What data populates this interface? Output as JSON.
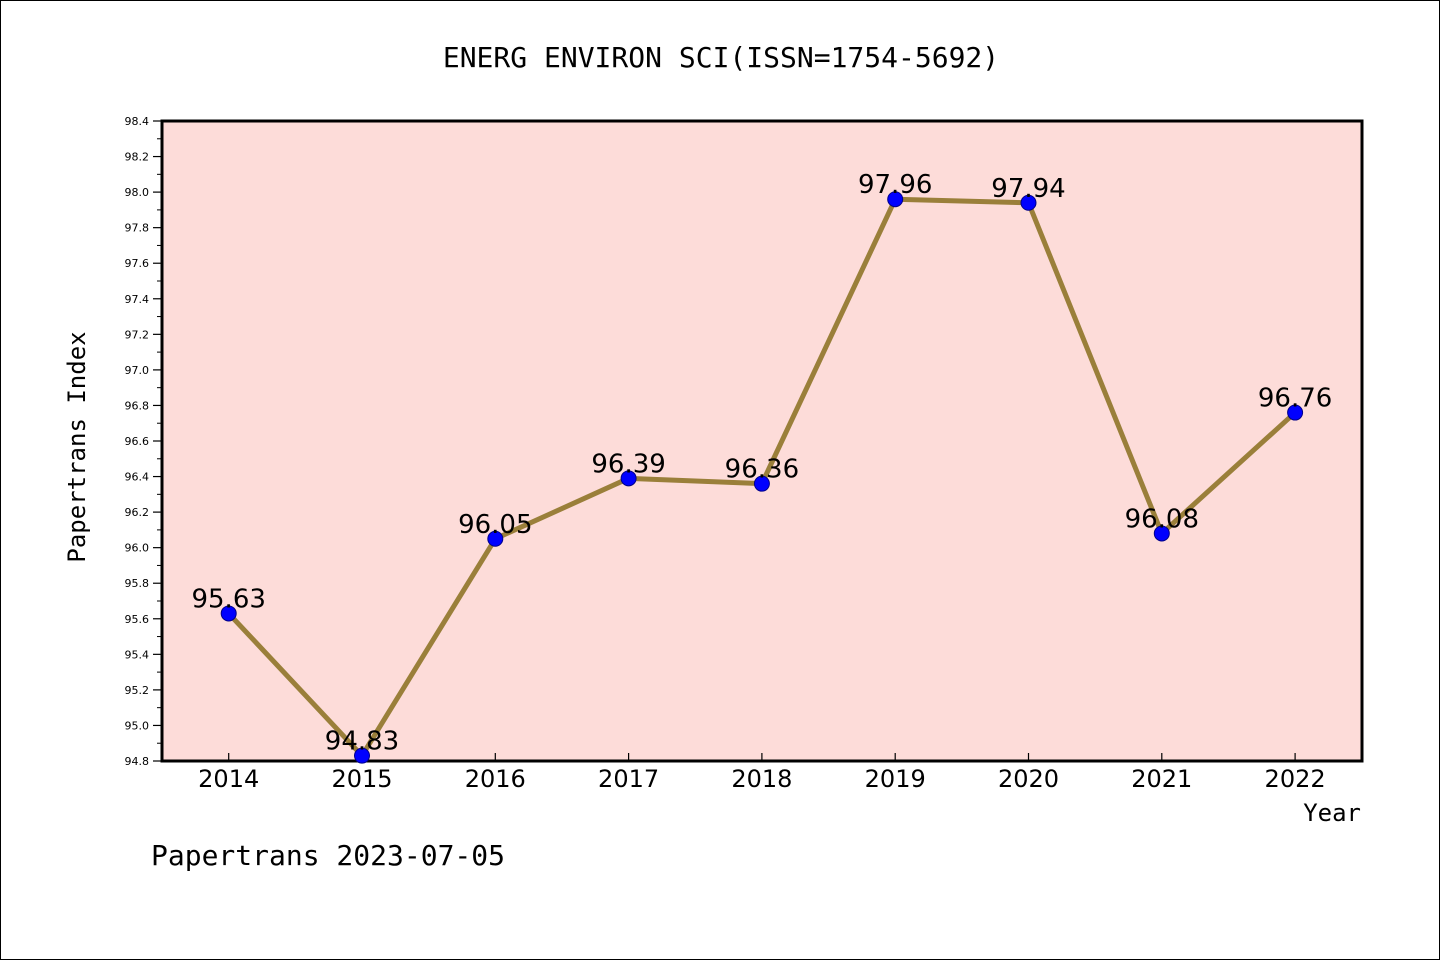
{
  "chart_data": {
    "type": "line",
    "title": "ENERG ENVIRON SCI(ISSN=1754-5692)",
    "xlabel": "Year",
    "ylabel": "Papertrans Index",
    "categories": [
      "2014",
      "2015",
      "2016",
      "2017",
      "2018",
      "2019",
      "2020",
      "2021",
      "2022"
    ],
    "values": [
      95.63,
      94.83,
      96.05,
      96.39,
      96.36,
      97.96,
      97.94,
      96.08,
      96.76
    ],
    "data_labels": [
      "95.63",
      "94.83",
      "96.05",
      "96.39",
      "96.36",
      "97.96",
      "97.94",
      "96.08",
      "96.76"
    ],
    "ylim": [
      94.8,
      98.4
    ],
    "yticks": [
      "94.8",
      "95.0",
      "95.2",
      "95.4",
      "95.6",
      "95.8",
      "96.0",
      "96.2",
      "96.4",
      "96.6",
      "96.8",
      "97.0",
      "97.2",
      "97.4",
      "97.6",
      "97.8",
      "98.0",
      "98.2",
      "98.4"
    ],
    "grid": false,
    "colors": {
      "plot_background": "#fddcd9",
      "line": "#9a7f3a",
      "marker": "#0000ff"
    }
  },
  "footer": "Papertrans 2023-07-05"
}
